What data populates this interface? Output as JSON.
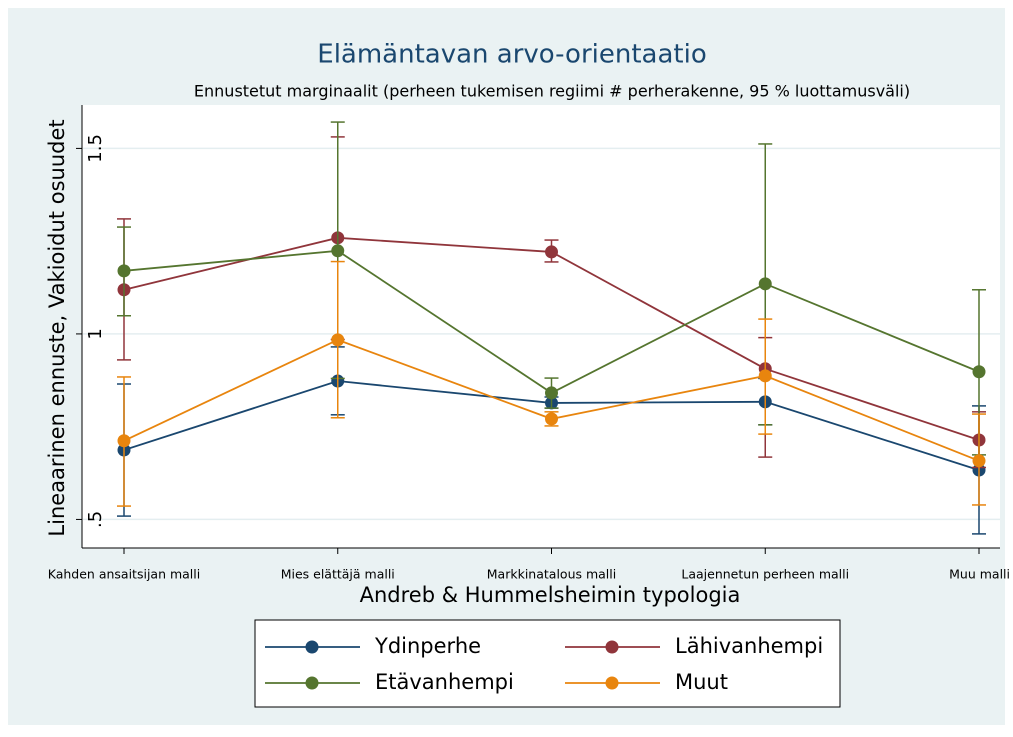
{
  "chart_data": {
    "type": "line",
    "title": "Elämäntavan arvo-orientaatio",
    "subtitle": "Ennustetut marginaalit (perheen tukemisen regiimi # perherakenne, 95 % luottamusväli)",
    "x_label": "Andreb & Hummelsheimin typologia",
    "y_label": "Lineaarinen ennuste, Vakioidut osuudet",
    "categories": [
      "Kahden ansaitsijan malli",
      "Mies elättäjä malli",
      "Markkinatalous malli",
      "Laajennetun perheen malli",
      "Muu malli"
    ],
    "ylim": [
      0.423,
      1.617
    ],
    "yticks": [
      {
        "value": 0.5,
        "label": ".5"
      },
      1,
      1.5
    ],
    "grid": true,
    "series": [
      {
        "name": "Ydinperhe",
        "color": "#1a476f",
        "values": [
          0.687,
          0.873,
          0.814,
          0.817,
          0.633
        ],
        "lower": [
          0.509,
          0.782,
          0.8,
          0.755,
          0.461
        ],
        "upper": [
          0.865,
          0.965,
          0.83,
          0.88,
          0.806
        ]
      },
      {
        "name": "Lähivanhempi",
        "color": "#90353b",
        "values": [
          1.119,
          1.259,
          1.221,
          0.906,
          0.714
        ],
        "lower": [
          0.93,
          0.985,
          1.194,
          0.668,
          0.64
        ],
        "upper": [
          1.31,
          1.531,
          1.253,
          0.99,
          0.79
        ]
      },
      {
        "name": "Etävanhempi",
        "color": "#55752f",
        "values": [
          1.17,
          1.224,
          0.841,
          1.135,
          0.898
        ],
        "lower": [
          1.049,
          0.88,
          0.8,
          0.755,
          0.674
        ],
        "upper": [
          1.288,
          1.571,
          0.881,
          1.512,
          1.119
        ]
      },
      {
        "name": "Muut",
        "color": "#e8850e",
        "values": [
          0.712,
          0.984,
          0.771,
          0.887,
          0.658
        ],
        "lower": [
          0.536,
          0.774,
          0.752,
          0.73,
          0.539
        ],
        "upper": [
          0.884,
          1.195,
          0.79,
          1.04,
          0.784
        ]
      }
    ]
  }
}
